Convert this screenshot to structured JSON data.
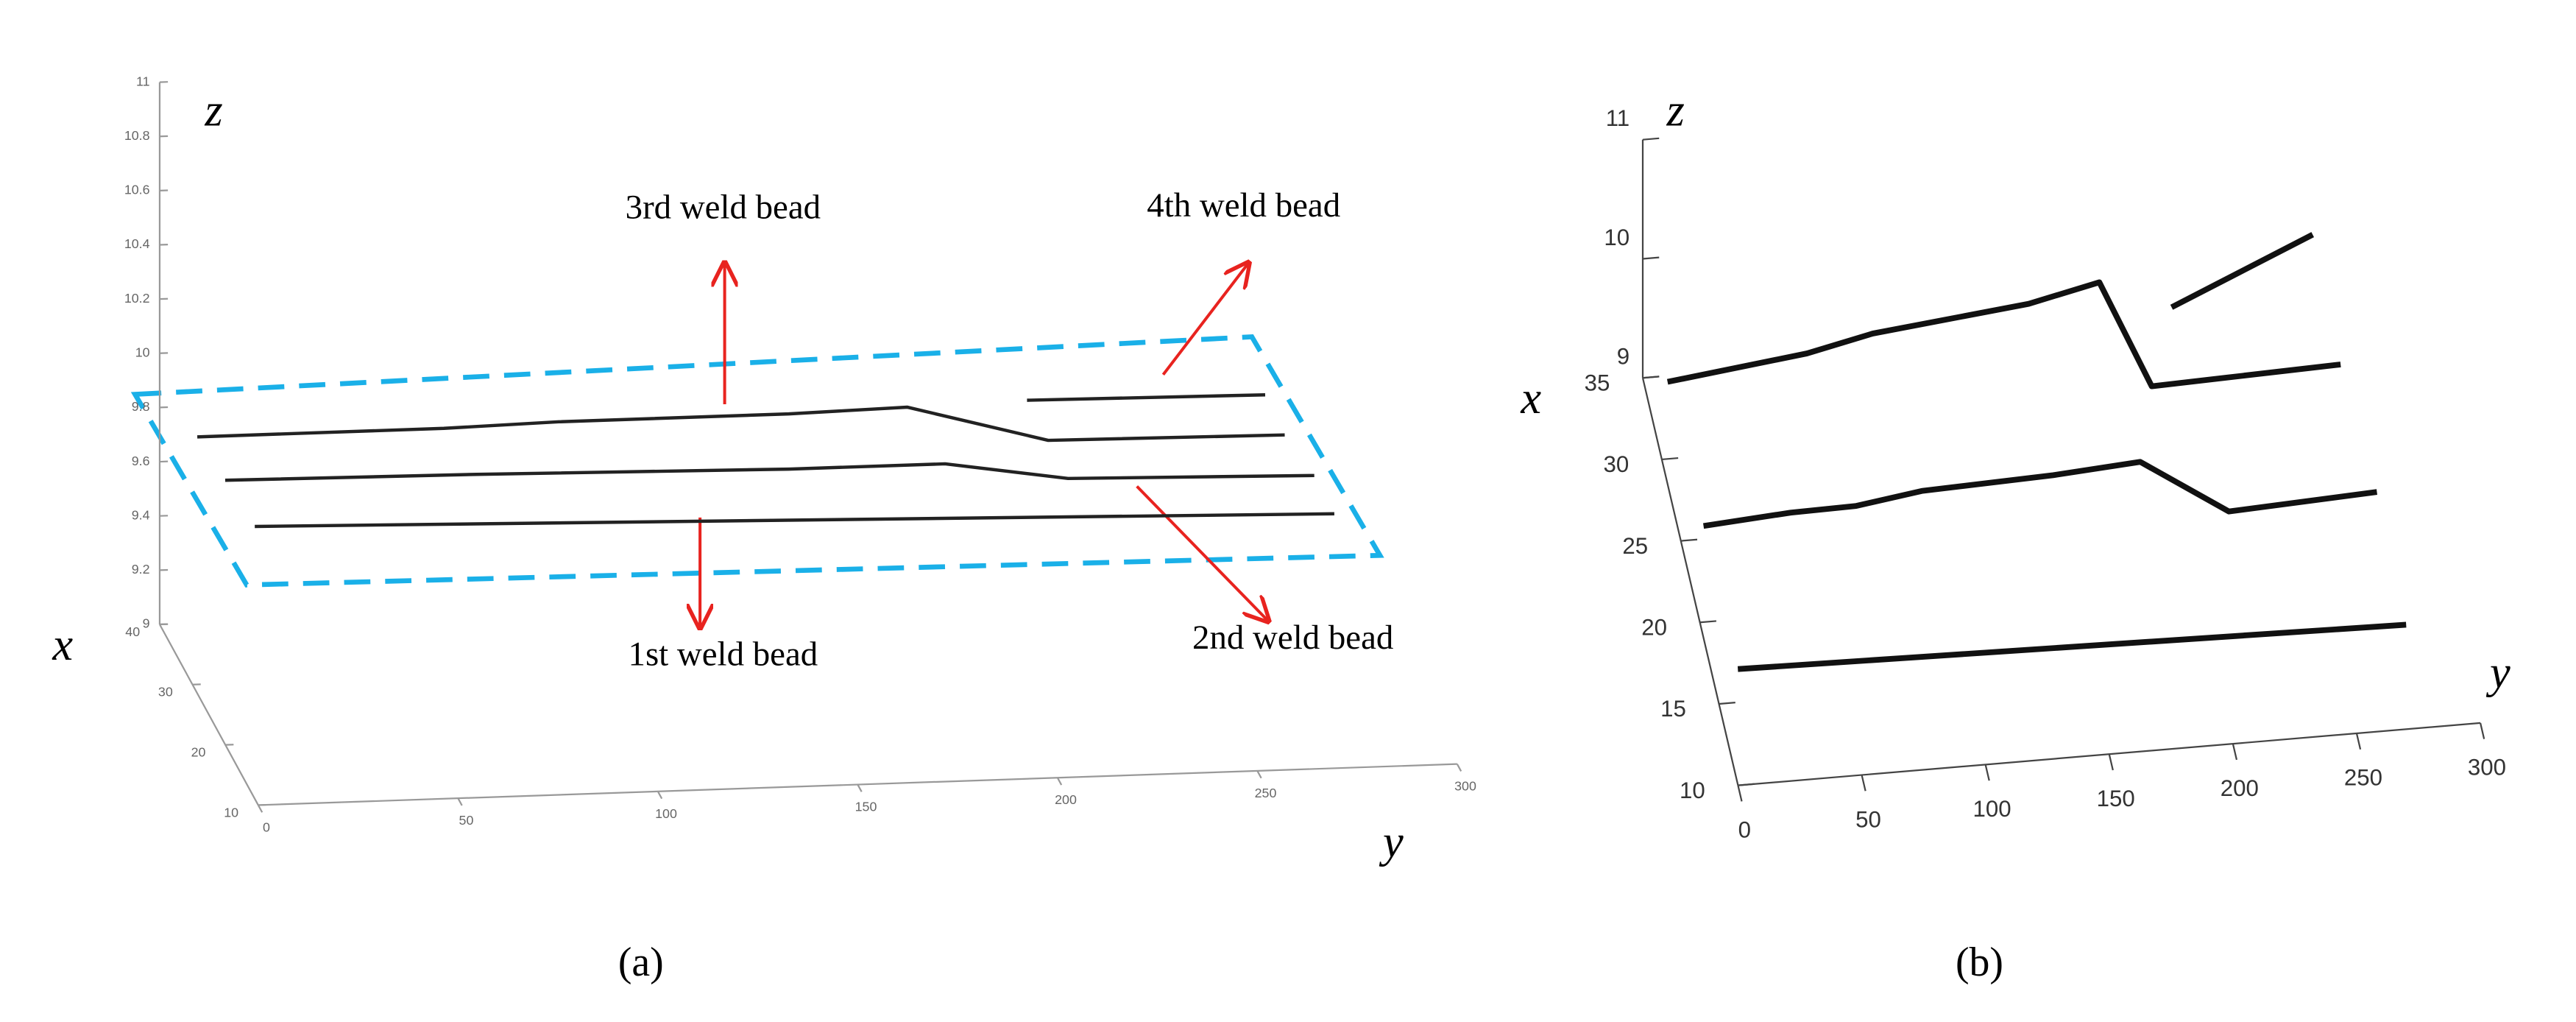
{
  "chart_data": [
    {
      "type": "line3d",
      "caption": "(a)",
      "xlabel": "x",
      "ylabel": "y",
      "zlabel": "z",
      "xlim": [
        10,
        40
      ],
      "ylim": [
        0,
        300
      ],
      "zlim": [
        9,
        11
      ],
      "xticks": [
        10,
        20,
        30,
        40
      ],
      "yticks": [
        0,
        50,
        100,
        150,
        200,
        250,
        300
      ],
      "zticks": [
        9,
        9.2,
        9.4,
        9.6,
        9.8,
        10,
        10.2,
        10.4,
        10.6,
        10.8,
        11
      ],
      "series": [
        {
          "color": "#222222",
          "x": 17,
          "y": [
            4.9,
            275
          ],
          "z": [
            9.87,
            9.78
          ]
        },
        {
          "color": "#222222",
          "x": 26,
          "y": [
            4.9,
            67.8,
            145.9,
            185,
            215.8,
            277.4
          ],
          "z": [
            9.84,
            9.83,
            9.81,
            9.81,
            9.74,
            9.72
          ]
        },
        {
          "color": "#222222",
          "x": 35,
          "y": [
            5.3,
            67,
            95.8,
            153.3,
            182.9,
            218.2,
            277.4
          ],
          "z": [
            9.8,
            9.8,
            9.81,
            9.81,
            9.82,
            9.68,
            9.67
          ]
        },
        {
          "color": "#222222",
          "x": 35,
          "y": [
            212.9,
            272.5
          ],
          "z": [
            9.83,
            9.82
          ]
        }
      ],
      "annotations": [
        {
          "text": "3rd weld bead"
        },
        {
          "text": "4th weld bead"
        },
        {
          "text": "1st weld bead"
        },
        {
          "text": "2nd weld bead"
        }
      ]
    },
    {
      "type": "line3d",
      "caption": "(b)",
      "xlabel": "x",
      "ylabel": "y",
      "zlabel": "z",
      "xlim": [
        10,
        35
      ],
      "ylim": [
        0,
        300
      ],
      "zlim": [
        9,
        11
      ],
      "xticks": [
        10,
        15,
        20,
        25,
        30,
        35
      ],
      "yticks": [
        0,
        50,
        100,
        150,
        200,
        250,
        300
      ],
      "zticks": [
        9,
        10,
        11
      ],
      "series": [
        {
          "color": "#111111",
          "x": 17,
          "y": [
            10.7,
            280.8
          ],
          "z": [
            9.0,
            8.9
          ]
        },
        {
          "color": "#111111",
          "x": 26,
          "y": [
            10.7,
            45.9,
            72.4,
            98.9,
            152.0,
            187.2,
            223.0,
            282.8
          ],
          "z": [
            8.97,
            9.02,
            9.03,
            9.11,
            9.15,
            9.2,
            8.72,
            8.78
          ]
        },
        {
          "color": "#111111",
          "x": 35,
          "y": [
            10.0,
            66.4,
            92.9,
            156.0,
            184.5,
            205.7,
            282.0
          ],
          "z": [
            8.95,
            9.09,
            9.21,
            9.35,
            9.48,
            8.57,
            8.62
          ]
        },
        {
          "color": "#111111",
          "x": 35,
          "y": [
            213.7,
            270.7
          ],
          "z": [
            9.22,
            9.73
          ]
        }
      ]
    }
  ]
}
